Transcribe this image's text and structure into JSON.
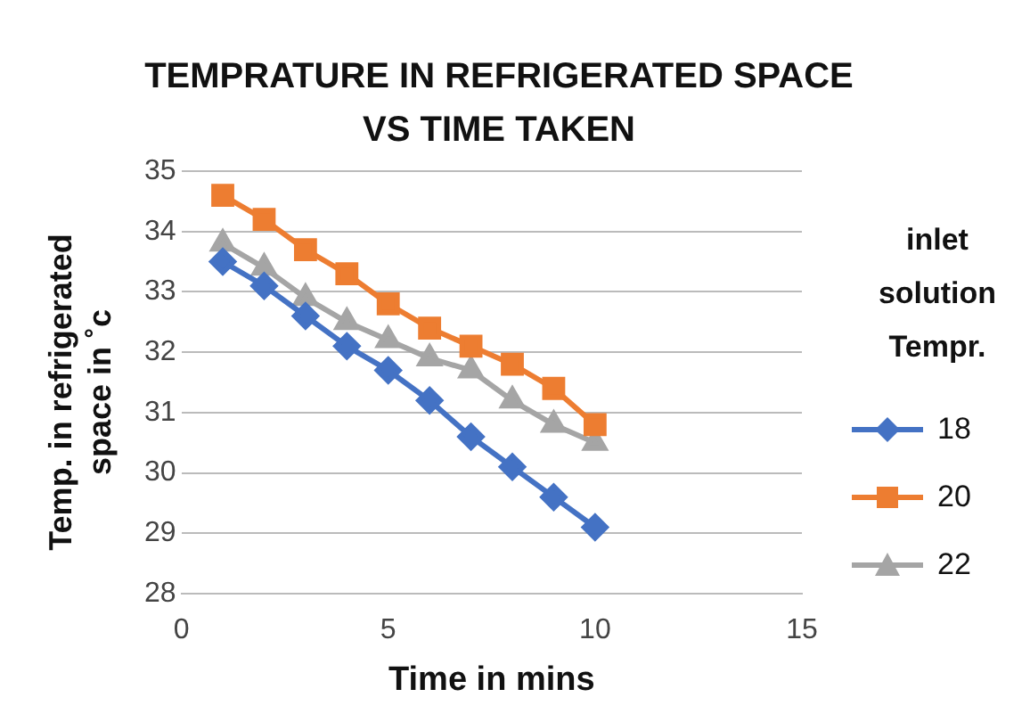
{
  "chart_data": {
    "type": "line",
    "title": "TEMPRATURE  IN REFRIGERATED SPACE VS  TIME TAKEN",
    "xlabel": "Time in mins",
    "ylabel": "Temp. in refrigerated space in ˚c",
    "legend_title": "inlet solution Tempr.",
    "legend": "right",
    "grid": "y",
    "line_style": "solid",
    "x": [
      1,
      2,
      3,
      4,
      5,
      6,
      7,
      8,
      9,
      10
    ],
    "xlim": [
      0,
      15
    ],
    "xticks": [
      0,
      5,
      10,
      15
    ],
    "ylim": [
      28,
      35
    ],
    "yticks": [
      28,
      29,
      30,
      31,
      32,
      33,
      34,
      35
    ],
    "series": [
      {
        "name": "18",
        "color": "#4472c4",
        "marker": "diamond",
        "values": [
          33.5,
          33.1,
          32.6,
          32.1,
          31.7,
          31.2,
          30.6,
          30.1,
          29.6,
          29.1
        ]
      },
      {
        "name": "20",
        "color": "#ed7d31",
        "marker": "square",
        "values": [
          34.6,
          34.2,
          33.7,
          33.3,
          32.8,
          32.4,
          32.1,
          31.8,
          31.4,
          30.8
        ]
      },
      {
        "name": "22",
        "color": "#a5a5a5",
        "marker": "triangle",
        "values": [
          33.8,
          33.4,
          32.9,
          32.5,
          32.2,
          31.9,
          31.7,
          31.2,
          30.8,
          30.5
        ]
      }
    ]
  }
}
